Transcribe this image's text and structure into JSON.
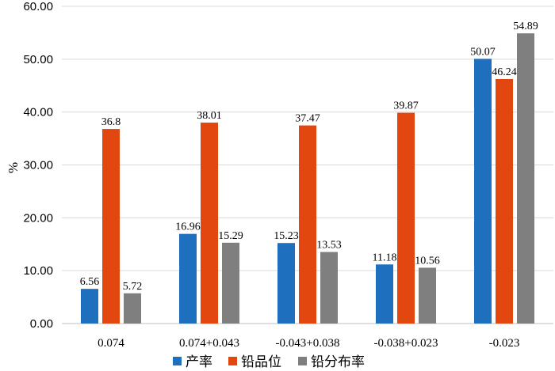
{
  "chart_data": {
    "type": "bar",
    "title": "",
    "xlabel": "",
    "ylabel": "%",
    "ylim": [
      0,
      60
    ],
    "yticks": [
      "0.00",
      "10.00",
      "20.00",
      "30.00",
      "40.00",
      "50.00",
      "60.00"
    ],
    "grid": true,
    "legend_position": "bottom",
    "categories": [
      "0.074",
      "0.074+0.043",
      "-0.043+0.038",
      "-0.038+0.023",
      "-0.023"
    ],
    "series": [
      {
        "name": "产率",
        "color": "#1f6fbf",
        "values": [
          6.56,
          16.96,
          15.23,
          11.18,
          50.07
        ],
        "labels": [
          "6.56",
          "16.96",
          "15.23",
          "11.18",
          "50.07"
        ]
      },
      {
        "name": "铅品位",
        "color": "#e2470f",
        "values": [
          36.8,
          38.01,
          37.47,
          39.87,
          46.24
        ],
        "labels": [
          "36.8",
          "38.01",
          "37.47",
          "39.87",
          "46.24"
        ]
      },
      {
        "name": "铅分布率",
        "color": "#7f7f7f",
        "values": [
          5.72,
          15.29,
          13.53,
          10.56,
          54.89
        ],
        "labels": [
          "5.72",
          "15.29",
          "13.53",
          "10.56",
          "54.89"
        ]
      }
    ]
  }
}
